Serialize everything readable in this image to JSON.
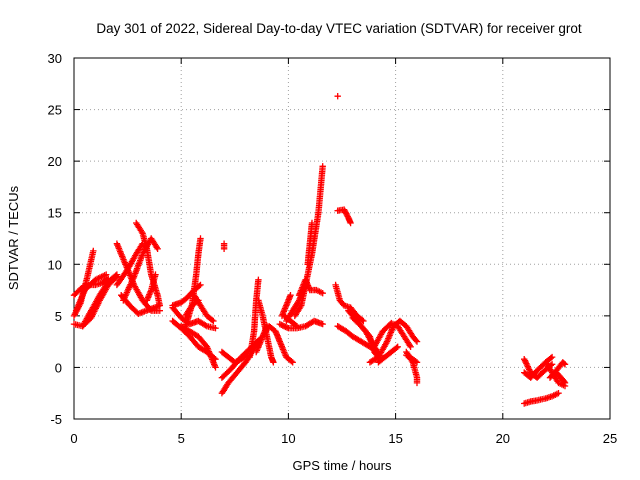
{
  "chart_data": {
    "type": "scatter",
    "title": "Day 301 of 2022, Sidereal Day-to-day VTEC variation (SDTVAR) for receiver grot",
    "xlabel": "GPS time / hours",
    "ylabel": "SDTVAR / TECUs",
    "xlim": [
      0,
      25
    ],
    "ylim": [
      -5,
      30
    ],
    "xticks": [
      0,
      5,
      10,
      15,
      20,
      25
    ],
    "yticks": [
      -5,
      0,
      5,
      10,
      15,
      20,
      25,
      30
    ],
    "grid": true,
    "marker": "+",
    "color": "#ff0000",
    "tracks": [
      [
        [
          0.0,
          7.0
        ],
        [
          0.3,
          7.6
        ],
        [
          0.6,
          8.0
        ],
        [
          1.0,
          8.0
        ],
        [
          1.3,
          8.2
        ],
        [
          1.6,
          8.6
        ]
      ],
      [
        [
          0.0,
          5.0
        ],
        [
          0.3,
          6.2
        ],
        [
          0.6,
          8.6
        ],
        [
          0.9,
          11.3
        ]
      ],
      [
        [
          0.0,
          4.2
        ],
        [
          0.4,
          4.0
        ],
        [
          0.8,
          5.5
        ],
        [
          1.2,
          7.0
        ],
        [
          1.6,
          8.3
        ],
        [
          2.0,
          9.0
        ]
      ],
      [
        [
          0.1,
          5.5
        ],
        [
          0.5,
          7.5
        ],
        [
          1.0,
          8.5
        ],
        [
          1.5,
          9.0
        ]
      ],
      [
        [
          0.4,
          4.0
        ],
        [
          0.8,
          4.8
        ],
        [
          1.2,
          6.5
        ],
        [
          1.6,
          8.0
        ],
        [
          2.0,
          8.8
        ]
      ],
      [
        [
          2.0,
          8.0
        ],
        [
          2.5,
          9.5
        ],
        [
          2.9,
          11.0
        ],
        [
          3.2,
          12.0
        ]
      ],
      [
        [
          2.0,
          12.0
        ],
        [
          2.4,
          10.0
        ],
        [
          2.8,
          8.0
        ],
        [
          3.2,
          6.5
        ],
        [
          3.6,
          5.5
        ],
        [
          4.0,
          5.5
        ]
      ],
      [
        [
          2.2,
          7.0
        ],
        [
          2.6,
          6.0
        ],
        [
          3.0,
          5.2
        ],
        [
          3.5,
          5.6
        ],
        [
          4.0,
          6.0
        ]
      ],
      [
        [
          2.3,
          6.5
        ],
        [
          2.8,
          8.8
        ],
        [
          3.2,
          11.0
        ],
        [
          3.6,
          12.5
        ],
        [
          3.9,
          11.5
        ]
      ],
      [
        [
          2.9,
          14.0
        ],
        [
          3.2,
          13.0
        ],
        [
          3.4,
          11.5
        ],
        [
          3.6,
          9.0
        ],
        [
          3.9,
          7.0
        ],
        [
          4.0,
          6.0
        ]
      ],
      [
        [
          3.4,
          6.5
        ],
        [
          3.6,
          7.5
        ],
        [
          3.8,
          9.0
        ]
      ],
      [
        [
          4.6,
          6.0
        ],
        [
          5.0,
          6.3
        ],
        [
          5.3,
          6.8
        ],
        [
          5.6,
          7.5
        ],
        [
          5.9,
          8.0
        ]
      ],
      [
        [
          4.6,
          5.8
        ],
        [
          5.0,
          4.8
        ],
        [
          5.4,
          4.2
        ],
        [
          5.8,
          4.5
        ],
        [
          6.2,
          4.0
        ],
        [
          6.6,
          3.8
        ]
      ],
      [
        [
          4.6,
          4.5
        ],
        [
          5.0,
          3.8
        ],
        [
          5.4,
          3.0
        ],
        [
          5.8,
          2.0
        ],
        [
          6.2,
          1.5
        ],
        [
          6.6,
          0.8
        ]
      ],
      [
        [
          5.0,
          4.0
        ],
        [
          5.4,
          3.5
        ],
        [
          5.8,
          3.0
        ],
        [
          6.2,
          2.0
        ],
        [
          6.6,
          0.0
        ]
      ],
      [
        [
          5.2,
          4.0
        ],
        [
          5.5,
          6.0
        ],
        [
          5.7,
          9.0
        ],
        [
          5.8,
          11.0
        ],
        [
          5.9,
          12.5
        ]
      ],
      [
        [
          5.2,
          5.0
        ],
        [
          5.5,
          6.0
        ],
        [
          5.8,
          6.5
        ]
      ],
      [
        [
          5.6,
          7.0
        ],
        [
          5.9,
          6.0
        ],
        [
          6.2,
          5.0
        ],
        [
          6.5,
          4.5
        ]
      ],
      [
        [
          6.9,
          -2.5
        ],
        [
          7.2,
          -1.5
        ],
        [
          7.6,
          -0.5
        ],
        [
          8.0,
          0.5
        ],
        [
          8.3,
          1.5
        ],
        [
          8.6,
          2.5
        ]
      ],
      [
        [
          6.9,
          -1.0
        ],
        [
          7.3,
          -0.2
        ],
        [
          7.8,
          1.0
        ],
        [
          8.3,
          2.0
        ],
        [
          8.8,
          3.0
        ],
        [
          9.0,
          4.0
        ]
      ],
      [
        [
          6.9,
          1.5
        ],
        [
          7.2,
          1.0
        ],
        [
          7.5,
          0.5
        ],
        [
          7.8,
          0.8
        ],
        [
          8.0,
          1.2
        ]
      ],
      [
        [
          7.0,
          12.0
        ],
        [
          7.0,
          11.5
        ]
      ],
      [
        [
          8.2,
          1.0
        ],
        [
          8.4,
          3.5
        ],
        [
          8.5,
          6.5
        ],
        [
          8.6,
          8.5
        ]
      ],
      [
        [
          8.5,
          1.5
        ],
        [
          8.8,
          3.0
        ],
        [
          9.1,
          4.0
        ],
        [
          9.4,
          3.5
        ],
        [
          9.6,
          2.5
        ],
        [
          9.9,
          1.0
        ],
        [
          10.2,
          0.5
        ]
      ],
      [
        [
          8.6,
          6.5
        ],
        [
          8.8,
          5.0
        ],
        [
          9.0,
          3.0
        ],
        [
          9.2,
          1.0
        ],
        [
          9.3,
          0.5
        ]
      ],
      [
        [
          9.7,
          5.0
        ],
        [
          9.9,
          6.0
        ],
        [
          10.1,
          7.0
        ]
      ],
      [
        [
          9.8,
          5.0
        ],
        [
          10.1,
          4.5
        ],
        [
          10.4,
          4.0
        ]
      ],
      [
        [
          9.9,
          4.5
        ],
        [
          10.2,
          5.5
        ],
        [
          10.5,
          6.5
        ],
        [
          10.8,
          8.0
        ],
        [
          11.1,
          11.0
        ],
        [
          11.4,
          15.0
        ],
        [
          11.6,
          19.5
        ]
      ],
      [
        [
          10.3,
          5.0
        ],
        [
          10.6,
          6.0
        ],
        [
          10.8,
          8.0
        ]
      ],
      [
        [
          9.6,
          4.2
        ],
        [
          10.0,
          3.8
        ],
        [
          10.4,
          3.8
        ],
        [
          10.8,
          4.0
        ],
        [
          11.2,
          4.5
        ],
        [
          11.6,
          4.2
        ]
      ],
      [
        [
          10.9,
          10.0
        ],
        [
          11.0,
          12.0
        ],
        [
          11.1,
          14.0
        ]
      ],
      [
        [
          10.5,
          7.0
        ],
        [
          10.8,
          8.5
        ],
        [
          11.0,
          7.5
        ],
        [
          11.3,
          7.5
        ],
        [
          11.6,
          7.2
        ]
      ],
      [
        [
          12.3,
          26.3
        ]
      ],
      [
        [
          12.3,
          15.2
        ],
        [
          12.6,
          15.3
        ],
        [
          12.8,
          14.5
        ],
        [
          12.9,
          14.0
        ]
      ],
      [
        [
          12.2,
          8.0
        ],
        [
          12.4,
          6.5
        ],
        [
          12.6,
          6.0
        ],
        [
          12.9,
          5.8
        ],
        [
          13.2,
          5.0
        ],
        [
          13.5,
          4.5
        ]
      ],
      [
        [
          12.3,
          4.0
        ],
        [
          12.7,
          3.5
        ],
        [
          13.0,
          3.0
        ],
        [
          13.4,
          2.5
        ],
        [
          13.8,
          2.0
        ],
        [
          14.2,
          1.5
        ]
      ],
      [
        [
          12.8,
          5.5
        ],
        [
          13.2,
          4.5
        ],
        [
          13.6,
          3.5
        ],
        [
          14.0,
          2.0
        ],
        [
          14.3,
          1.0
        ]
      ],
      [
        [
          13.0,
          4.8
        ],
        [
          13.4,
          4.0
        ],
        [
          13.8,
          3.0
        ],
        [
          14.0,
          1.5
        ],
        [
          14.2,
          1.0
        ]
      ],
      [
        [
          13.8,
          0.5
        ],
        [
          14.2,
          1.0
        ],
        [
          14.6,
          2.5
        ],
        [
          14.9,
          4.0
        ],
        [
          15.2,
          4.5
        ],
        [
          15.5,
          4.0
        ],
        [
          15.8,
          3.0
        ],
        [
          16.0,
          2.5
        ]
      ],
      [
        [
          14.0,
          2.0
        ],
        [
          14.4,
          3.5
        ],
        [
          14.8,
          4.3
        ],
        [
          15.1,
          4.0
        ],
        [
          15.4,
          3.0
        ],
        [
          15.7,
          2.0
        ]
      ],
      [
        [
          14.2,
          0.5
        ],
        [
          14.5,
          1.0
        ],
        [
          14.8,
          1.5
        ],
        [
          15.1,
          2.0
        ]
      ],
      [
        [
          15.5,
          1.5
        ],
        [
          15.8,
          0.5
        ],
        [
          16.0,
          -1.0
        ],
        [
          16.0,
          -1.5
        ]
      ],
      [
        [
          15.5,
          1.2
        ],
        [
          15.8,
          0.8
        ],
        [
          16.0,
          0.5
        ]
      ],
      [
        [
          21.0,
          -3.5
        ],
        [
          21.3,
          -3.3
        ],
        [
          21.6,
          -3.2
        ],
        [
          22.0,
          -3.0
        ],
        [
          22.3,
          -2.8
        ],
        [
          22.6,
          -2.5
        ]
      ],
      [
        [
          21.0,
          -0.5
        ],
        [
          21.3,
          -1.0
        ],
        [
          21.6,
          -0.3
        ],
        [
          22.0,
          0.5
        ],
        [
          22.3,
          1.0
        ]
      ],
      [
        [
          21.0,
          0.8
        ],
        [
          21.3,
          -0.5
        ],
        [
          21.6,
          -1.0
        ],
        [
          22.0,
          -0.2
        ],
        [
          22.3,
          0.3
        ]
      ],
      [
        [
          22.0,
          0.5
        ],
        [
          22.3,
          -0.5
        ],
        [
          22.6,
          -1.5
        ],
        [
          22.9,
          -1.8
        ]
      ],
      [
        [
          22.2,
          -1.0
        ],
        [
          22.5,
          -0.3
        ],
        [
          22.8,
          0.5
        ],
        [
          22.9,
          0.3
        ]
      ],
      [
        [
          22.5,
          -0.5
        ],
        [
          22.8,
          -1.2
        ],
        [
          22.9,
          -1.5
        ]
      ]
    ]
  }
}
